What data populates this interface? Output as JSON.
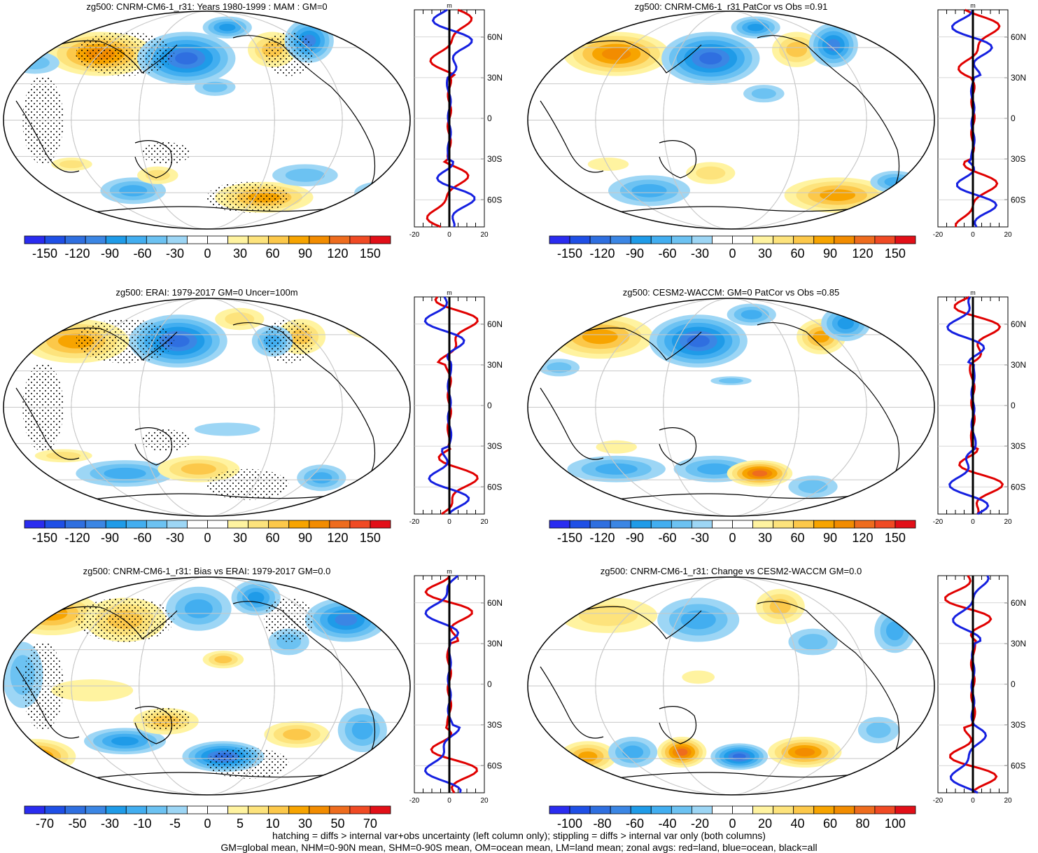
{
  "colors": {
    "blue_shades": [
      "#2a2cf0",
      "#1f4fe6",
      "#2f6fe0",
      "#3b86e4",
      "#1f9be8",
      "#42aef0",
      "#6cc2f2",
      "#9dd6f5"
    ],
    "red_shades": [
      "#fff3a0",
      "#fde37c",
      "#fcc84a",
      "#f7a400",
      "#f28c00",
      "#ee6c1e",
      "#f04a24",
      "#e20f18"
    ],
    "land_line": "#e00000",
    "ocean_line": "#1520e0",
    "all_line": "#000000",
    "grid": "#c8c8c8"
  },
  "panels": [
    {
      "title": "zg500: CNRM-CM6-1_r31: Years 1980-1999 : MAM : GM=0",
      "colorbar_labels": [
        "-150",
        "-120",
        "-90",
        "-60",
        "-30",
        "0",
        "30",
        "60",
        "90",
        "120",
        "150"
      ],
      "zonal_ticks": [
        "60N",
        "30N",
        "0",
        "30S",
        "60S"
      ],
      "zonal_x": [
        "-20",
        "0",
        "20"
      ],
      "zonal_unit": "m",
      "stippled": true
    },
    {
      "title": "zg500: CNRM-CM6-1_r31 PatCor vs Obs =0.91",
      "colorbar_labels": [
        "-150",
        "-120",
        "-90",
        "-60",
        "-30",
        "0",
        "30",
        "60",
        "90",
        "120",
        "150"
      ],
      "zonal_ticks": [
        "60N",
        "30N",
        "0",
        "30S",
        "60S"
      ],
      "zonal_x": [
        "-20",
        "0",
        "20"
      ],
      "zonal_unit": "m",
      "stippled": false
    },
    {
      "title": "zg500: ERAI: 1979-2017 GM=0 Uncer=100m",
      "colorbar_labels": [
        "-150",
        "-120",
        "-90",
        "-60",
        "-30",
        "0",
        "30",
        "60",
        "90",
        "120",
        "150"
      ],
      "zonal_ticks": [
        "60N",
        "30N",
        "0",
        "30S",
        "60S"
      ],
      "zonal_x": [
        "-20",
        "0",
        "20"
      ],
      "zonal_unit": "m",
      "stippled": true
    },
    {
      "title": "zg500: CESM2-WACCM: GM=0 PatCor vs Obs =0.85",
      "colorbar_labels": [
        "-150",
        "-120",
        "-90",
        "-60",
        "-30",
        "0",
        "30",
        "60",
        "90",
        "120",
        "150"
      ],
      "zonal_ticks": [
        "60N",
        "30N",
        "0",
        "30S",
        "60S"
      ],
      "zonal_x": [
        "-20",
        "0",
        "20"
      ],
      "zonal_unit": "m",
      "stippled": false
    },
    {
      "title": "zg500: CNRM-CM6-1_r31: Bias vs ERAI: 1979-2017 GM=0.0",
      "colorbar_labels": [
        "-70",
        "-50",
        "-30",
        "-10",
        "-5",
        "0",
        "5",
        "10",
        "30",
        "50",
        "70"
      ],
      "zonal_ticks": [
        "60N",
        "30N",
        "0",
        "30S",
        "60S"
      ],
      "zonal_x": [
        "-20",
        "0",
        "20"
      ],
      "zonal_unit": "m",
      "stippled": true
    },
    {
      "title": "zg500: CNRM-CM6-1_r31: Change vs CESM2-WACCM GM=0.0",
      "colorbar_labels": [
        "-100",
        "-80",
        "-60",
        "-40",
        "-20",
        "0",
        "20",
        "40",
        "60",
        "80",
        "100"
      ],
      "zonal_ticks": [
        "60N",
        "30N",
        "0",
        "30S",
        "60S"
      ],
      "zonal_x": [
        "-20",
        "0",
        "20"
      ],
      "zonal_unit": "",
      "stippled": false
    }
  ],
  "footer": {
    "line1": "hatching = diffs > internal var+obs uncertainty (left column only); stippling = diffs > internal var only (both columns)",
    "line2": "GM=global mean, NHM=0-90N mean, SHM=0-90S mean, OM=ocean mean, LM=land mean; zonal avgs: red=land, blue=ocean, black=all"
  }
}
